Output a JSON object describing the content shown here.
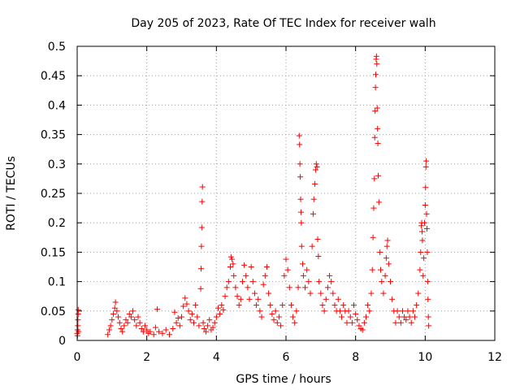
{
  "chart_data": {
    "type": "scatter",
    "title": "Day 205 of 2023, Rate Of TEC Index for receiver walh",
    "xlabel": "GPS time / hours",
    "ylabel": "ROTI / TECUs",
    "xlim": [
      0,
      12
    ],
    "ylim": [
      0,
      0.5
    ],
    "x_ticks": [
      0,
      2,
      4,
      6,
      8,
      10,
      12
    ],
    "x_tick_labels": [
      "0",
      "2",
      "4",
      "6",
      "8",
      "10",
      "12"
    ],
    "y_ticks": [
      0,
      0.05,
      0.1,
      0.15,
      0.2,
      0.25,
      0.3,
      0.35,
      0.4,
      0.45,
      0.5
    ],
    "y_tick_labels": [
      "0",
      "0.05",
      "0.1",
      "0.15",
      "0.2",
      "0.25",
      "0.3",
      "0.35",
      "0.4",
      "0.45",
      "0.5"
    ],
    "grid": true,
    "marker": "plus",
    "color": "#ff0000",
    "series": [
      {
        "points": [
          [
            0.0,
            0.012
          ],
          [
            0.01,
            0.018
          ],
          [
            0.02,
            0.025
          ],
          [
            0.02,
            0.035
          ],
          [
            0.03,
            0.045
          ],
          [
            0.03,
            0.052
          ],
          [
            0.01,
            0.008
          ],
          [
            0.04,
            0.015
          ],
          [
            0.88,
            0.01
          ],
          [
            0.92,
            0.018
          ],
          [
            0.96,
            0.025
          ],
          [
            1.0,
            0.035
          ],
          [
            1.04,
            0.045
          ],
          [
            1.08,
            0.055
          ],
          [
            1.1,
            0.065
          ],
          [
            1.14,
            0.05
          ],
          [
            1.18,
            0.04
          ],
          [
            1.22,
            0.03
          ],
          [
            1.26,
            0.02
          ],
          [
            1.3,
            0.015
          ],
          [
            1.35,
            0.025
          ],
          [
            1.4,
            0.035
          ],
          [
            1.45,
            0.03
          ],
          [
            1.5,
            0.045
          ],
          [
            1.55,
            0.04
          ],
          [
            1.6,
            0.05
          ],
          [
            1.65,
            0.035
          ],
          [
            1.7,
            0.025
          ],
          [
            1.75,
            0.04
          ],
          [
            1.8,
            0.03
          ],
          [
            1.85,
            0.02
          ],
          [
            1.9,
            0.015
          ],
          [
            1.95,
            0.025
          ],
          [
            2.0,
            0.018
          ],
          [
            2.05,
            0.012
          ],
          [
            2.1,
            0.015
          ],
          [
            2.2,
            0.01
          ],
          [
            2.25,
            0.022
          ],
          [
            2.3,
            0.053
          ],
          [
            2.35,
            0.015
          ],
          [
            2.45,
            0.012
          ],
          [
            2.55,
            0.018
          ],
          [
            2.65,
            0.01
          ],
          [
            2.75,
            0.02
          ],
          [
            2.8,
            0.048
          ],
          [
            2.85,
            0.03
          ],
          [
            2.9,
            0.038
          ],
          [
            2.95,
            0.025
          ],
          [
            3.0,
            0.04
          ],
          [
            3.05,
            0.058
          ],
          [
            3.1,
            0.072
          ],
          [
            3.15,
            0.062
          ],
          [
            3.2,
            0.05
          ],
          [
            3.25,
            0.035
          ],
          [
            3.3,
            0.045
          ],
          [
            3.35,
            0.03
          ],
          [
            3.4,
            0.06
          ],
          [
            3.45,
            0.04
          ],
          [
            3.5,
            0.025
          ],
          [
            3.55,
            0.088
          ],
          [
            3.56,
            0.122
          ],
          [
            3.57,
            0.16
          ],
          [
            3.58,
            0.192
          ],
          [
            3.59,
            0.236
          ],
          [
            3.6,
            0.261
          ],
          [
            3.62,
            0.03
          ],
          [
            3.65,
            0.02
          ],
          [
            3.7,
            0.015
          ],
          [
            3.75,
            0.025
          ],
          [
            3.8,
            0.035
          ],
          [
            3.85,
            0.018
          ],
          [
            3.9,
            0.022
          ],
          [
            3.95,
            0.03
          ],
          [
            4.0,
            0.04
          ],
          [
            4.05,
            0.055
          ],
          [
            4.1,
            0.045
          ],
          [
            4.15,
            0.06
          ],
          [
            4.2,
            0.052
          ],
          [
            4.25,
            0.075
          ],
          [
            4.3,
            0.09
          ],
          [
            4.35,
            0.1
          ],
          [
            4.4,
            0.125
          ],
          [
            4.42,
            0.142
          ],
          [
            4.45,
            0.138
          ],
          [
            4.48,
            0.13
          ],
          [
            4.5,
            0.11
          ],
          [
            4.55,
            0.09
          ],
          [
            4.6,
            0.075
          ],
          [
            4.65,
            0.06
          ],
          [
            4.7,
            0.07
          ],
          [
            4.75,
            0.1
          ],
          [
            4.8,
            0.128
          ],
          [
            4.85,
            0.11
          ],
          [
            4.9,
            0.09
          ],
          [
            4.95,
            0.07
          ],
          [
            5.0,
            0.125
          ],
          [
            5.05,
            0.1
          ],
          [
            5.1,
            0.08
          ],
          [
            5.15,
            0.06
          ],
          [
            5.2,
            0.07
          ],
          [
            5.25,
            0.05
          ],
          [
            5.3,
            0.04
          ],
          [
            5.35,
            0.095
          ],
          [
            5.4,
            0.11
          ],
          [
            5.45,
            0.125
          ],
          [
            5.5,
            0.08
          ],
          [
            5.55,
            0.06
          ],
          [
            5.6,
            0.045
          ],
          [
            5.65,
            0.035
          ],
          [
            5.7,
            0.05
          ],
          [
            5.75,
            0.03
          ],
          [
            5.8,
            0.04
          ],
          [
            5.85,
            0.025
          ],
          [
            5.9,
            0.06
          ],
          [
            5.95,
            0.11
          ],
          [
            6.0,
            0.138
          ],
          [
            6.05,
            0.12
          ],
          [
            6.1,
            0.09
          ],
          [
            6.15,
            0.06
          ],
          [
            6.2,
            0.04
          ],
          [
            6.25,
            0.03
          ],
          [
            6.3,
            0.05
          ],
          [
            6.35,
            0.09
          ],
          [
            6.38,
            0.348
          ],
          [
            6.39,
            0.333
          ],
          [
            6.4,
            0.3
          ],
          [
            6.41,
            0.278
          ],
          [
            6.42,
            0.24
          ],
          [
            6.43,
            0.218
          ],
          [
            6.44,
            0.2
          ],
          [
            6.45,
            0.16
          ],
          [
            6.48,
            0.13
          ],
          [
            6.5,
            0.11
          ],
          [
            6.55,
            0.09
          ],
          [
            6.6,
            0.12
          ],
          [
            6.65,
            0.1
          ],
          [
            6.7,
            0.08
          ],
          [
            6.75,
            0.16
          ],
          [
            6.78,
            0.215
          ],
          [
            6.8,
            0.24
          ],
          [
            6.83,
            0.266
          ],
          [
            6.85,
            0.29
          ],
          [
            6.87,
            0.3
          ],
          [
            6.89,
            0.295
          ],
          [
            6.91,
            0.172
          ],
          [
            6.93,
            0.143
          ],
          [
            6.95,
            0.1
          ],
          [
            7.0,
            0.08
          ],
          [
            7.05,
            0.06
          ],
          [
            7.1,
            0.05
          ],
          [
            7.15,
            0.07
          ],
          [
            7.2,
            0.09
          ],
          [
            7.25,
            0.11
          ],
          [
            7.3,
            0.1
          ],
          [
            7.35,
            0.08
          ],
          [
            7.4,
            0.06
          ],
          [
            7.45,
            0.05
          ],
          [
            7.5,
            0.07
          ],
          [
            7.55,
            0.05
          ],
          [
            7.6,
            0.04
          ],
          [
            7.65,
            0.06
          ],
          [
            7.7,
            0.05
          ],
          [
            7.75,
            0.03
          ],
          [
            7.8,
            0.05
          ],
          [
            7.85,
            0.04
          ],
          [
            7.9,
            0.03
          ],
          [
            7.95,
            0.06
          ],
          [
            8.0,
            0.045
          ],
          [
            8.05,
            0.035
          ],
          [
            8.1,
            0.025
          ],
          [
            8.15,
            0.02
          ],
          [
            8.2,
            0.018
          ],
          [
            8.25,
            0.03
          ],
          [
            8.3,
            0.04
          ],
          [
            8.35,
            0.06
          ],
          [
            8.4,
            0.05
          ],
          [
            8.45,
            0.08
          ],
          [
            8.48,
            0.12
          ],
          [
            8.5,
            0.175
          ],
          [
            8.52,
            0.225
          ],
          [
            8.54,
            0.275
          ],
          [
            8.55,
            0.345
          ],
          [
            8.56,
            0.39
          ],
          [
            8.57,
            0.43
          ],
          [
            8.58,
            0.452
          ],
          [
            8.59,
            0.478
          ],
          [
            8.6,
            0.483
          ],
          [
            8.61,
            0.47
          ],
          [
            8.62,
            0.395
          ],
          [
            8.63,
            0.36
          ],
          [
            8.64,
            0.335
          ],
          [
            8.65,
            0.28
          ],
          [
            8.67,
            0.235
          ],
          [
            8.7,
            0.15
          ],
          [
            8.72,
            0.12
          ],
          [
            8.75,
            0.1
          ],
          [
            8.8,
            0.08
          ],
          [
            8.85,
            0.11
          ],
          [
            8.88,
            0.14
          ],
          [
            8.9,
            0.16
          ],
          [
            8.92,
            0.17
          ],
          [
            8.95,
            0.13
          ],
          [
            9.0,
            0.1
          ],
          [
            9.05,
            0.07
          ],
          [
            9.1,
            0.05
          ],
          [
            9.15,
            0.03
          ],
          [
            9.2,
            0.05
          ],
          [
            9.25,
            0.04
          ],
          [
            9.3,
            0.03
          ],
          [
            9.35,
            0.05
          ],
          [
            9.4,
            0.04
          ],
          [
            9.45,
            0.035
          ],
          [
            9.5,
            0.05
          ],
          [
            9.55,
            0.04
          ],
          [
            9.6,
            0.03
          ],
          [
            9.65,
            0.05
          ],
          [
            9.7,
            0.04
          ],
          [
            9.75,
            0.06
          ],
          [
            9.8,
            0.08
          ],
          [
            9.85,
            0.12
          ],
          [
            9.87,
            0.15
          ],
          [
            9.89,
            0.195
          ],
          [
            9.9,
            0.2
          ],
          [
            9.91,
            0.185
          ],
          [
            9.92,
            0.17
          ],
          [
            9.94,
            0.11
          ],
          [
            9.96,
            0.14
          ],
          [
            9.98,
            0.2
          ],
          [
            10.0,
            0.23
          ],
          [
            10.01,
            0.26
          ],
          [
            10.02,
            0.295
          ],
          [
            10.03,
            0.305
          ],
          [
            10.04,
            0.215
          ],
          [
            10.05,
            0.19
          ],
          [
            10.06,
            0.15
          ],
          [
            10.07,
            0.1
          ],
          [
            10.08,
            0.07
          ],
          [
            10.09,
            0.04
          ],
          [
            10.1,
            0.025
          ]
        ]
      }
    ]
  }
}
